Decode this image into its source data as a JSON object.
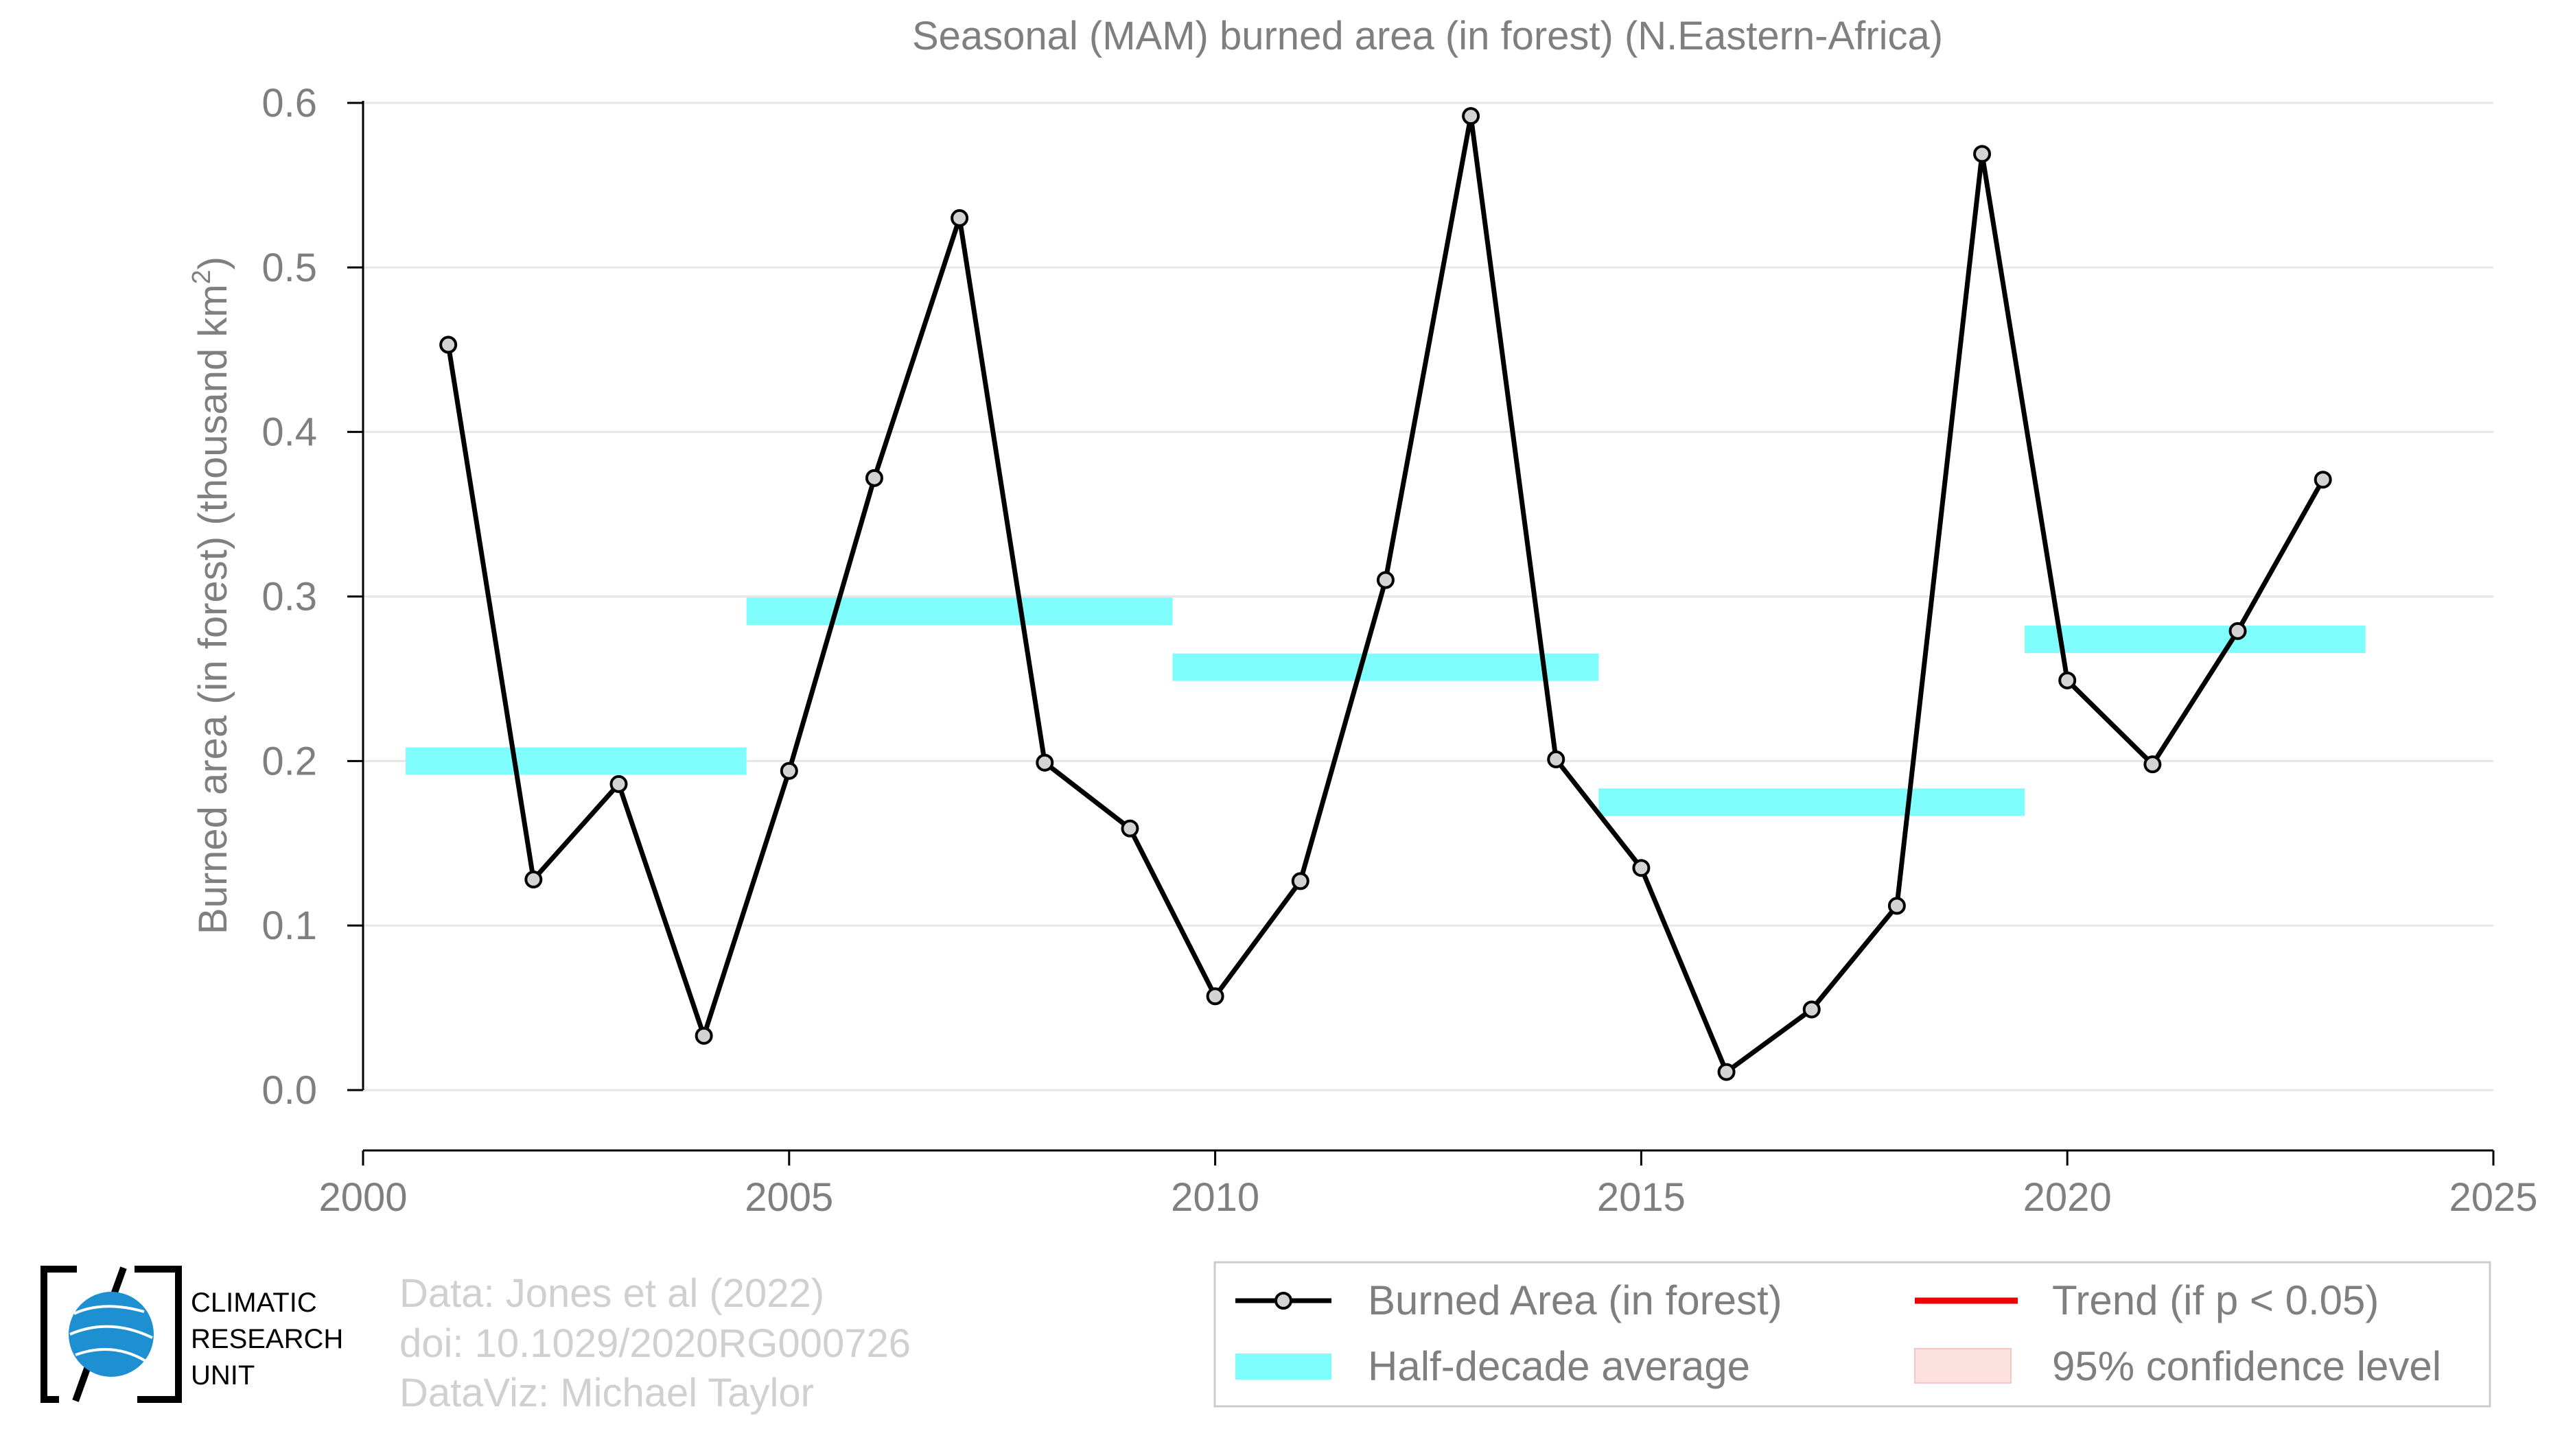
{
  "chart_data": {
    "type": "line",
    "title": "Seasonal (MAM) burned area (in forest) (N.Eastern-Africa)",
    "xlabel": "",
    "ylabel": "Burned area (in forest) (thousand km",
    "ylabel_superscript": "2",
    "ylabel_suffix": ")",
    "xlim": [
      2000,
      2025
    ],
    "ylim": [
      0.0,
      0.6
    ],
    "xticks": [
      2000,
      2005,
      2010,
      2015,
      2020,
      2025
    ],
    "xtick_labels": [
      "2000",
      "2005",
      "2010",
      "2015",
      "2020",
      "2025"
    ],
    "yticks": [
      0.0,
      0.1,
      0.2,
      0.3,
      0.4,
      0.5,
      0.6
    ],
    "ytick_labels": [
      "0.0",
      "0.1",
      "0.2",
      "0.3",
      "0.4",
      "0.5",
      "0.6"
    ],
    "grid": "horizontal",
    "series": [
      {
        "name": "Burned Area (in forest)",
        "color": "#000000",
        "marker_fill": "#d3d3d3",
        "x": [
          2001,
          2002,
          2003,
          2004,
          2005,
          2006,
          2007,
          2008,
          2009,
          2010,
          2011,
          2012,
          2013,
          2014,
          2015,
          2016,
          2017,
          2018,
          2019,
          2020,
          2021,
          2022,
          2023
        ],
        "y": [
          0.453,
          0.128,
          0.186,
          0.033,
          0.194,
          0.372,
          0.53,
          0.199,
          0.159,
          0.057,
          0.127,
          0.31,
          0.592,
          0.201,
          0.135,
          0.011,
          0.049,
          0.112,
          0.569,
          0.249,
          0.198,
          0.279,
          0.371
        ]
      }
    ],
    "half_decade_average": {
      "name": "Half-decade average",
      "color": "#7ffcfc",
      "segments": [
        {
          "x0": 2000.5,
          "x1": 2004.5,
          "y": 0.2
        },
        {
          "x0": 2004.5,
          "x1": 2009.5,
          "y": 0.291
        },
        {
          "x0": 2009.5,
          "x1": 2014.5,
          "y": 0.257
        },
        {
          "x0": 2014.5,
          "x1": 2019.5,
          "y": 0.175
        },
        {
          "x0": 2019.5,
          "x1": 2023.5,
          "y": 0.274
        }
      ]
    },
    "legend": {
      "position": "bottom-right",
      "entries": [
        {
          "label": "Burned Area (in forest)",
          "kind": "line-marker",
          "color": "#000000"
        },
        {
          "label": "Trend (if p < 0.05)",
          "kind": "line",
          "color": "#ee0000"
        },
        {
          "label": "Half-decade average",
          "kind": "band",
          "color": "#7ffcfc"
        },
        {
          "label": "95% confidence level",
          "kind": "band",
          "color": "#fde0e0"
        }
      ]
    }
  },
  "credits": {
    "lines": [
      "Data: Jones et al (2022)",
      "doi: 10.1029/2020RG000726",
      "DataViz: Michael Taylor"
    ]
  },
  "logo": {
    "lines": [
      "CLIMATIC",
      "RESEARCH",
      "UNIT"
    ]
  }
}
